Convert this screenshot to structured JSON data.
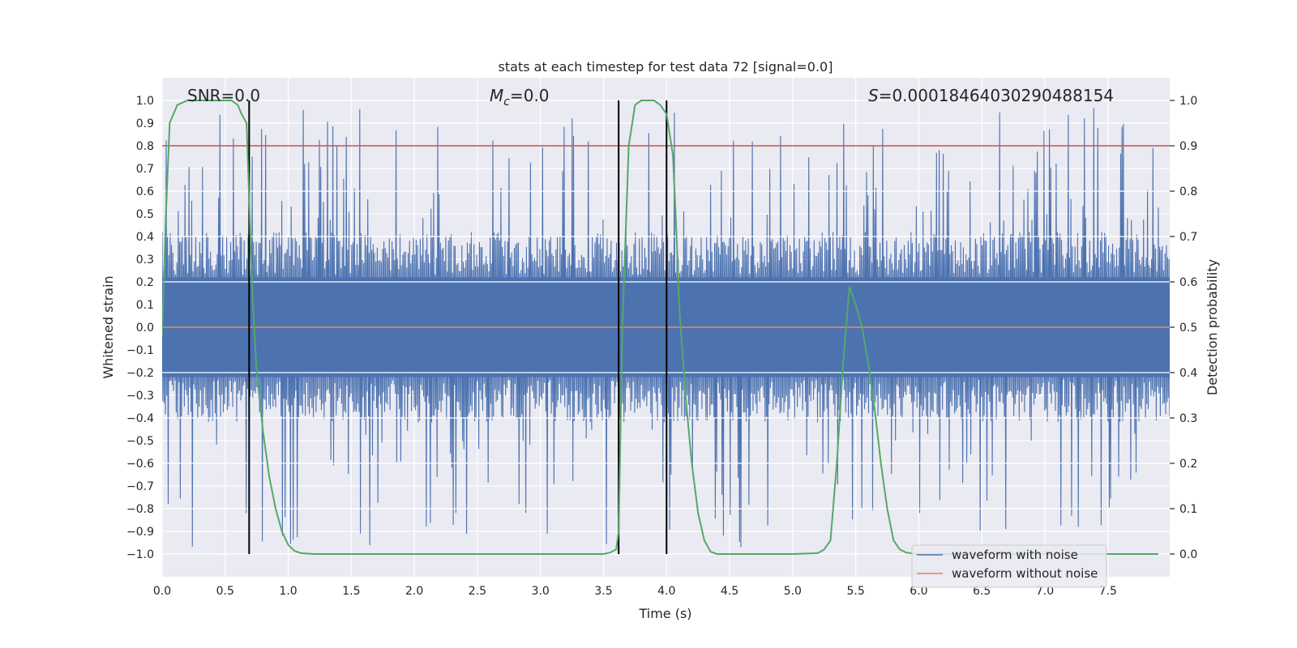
{
  "chart_data": {
    "type": "line",
    "title": "stats at each timestep for test data 72 [signal=0.0]",
    "xlabel": "Time (s)",
    "ylabel_left": "Whitened strain",
    "ylabel_right": "Detection probability",
    "xlim": [
      0.0,
      7.99
    ],
    "ylim_left": [
      -1.1,
      1.1
    ],
    "ylim_right": [
      -0.05,
      1.05
    ],
    "xticks": [
      "0.0",
      "0.5",
      "1.0",
      "1.5",
      "2.0",
      "2.5",
      "3.0",
      "3.5",
      "4.0",
      "4.5",
      "5.0",
      "5.5",
      "6.0",
      "6.5",
      "7.0",
      "7.5"
    ],
    "yticks_left": [
      "-1.0",
      "-0.9",
      "-0.8",
      "-0.7",
      "-0.6",
      "-0.5",
      "-0.4",
      "-0.3",
      "-0.2",
      "-0.1",
      "0.0",
      "0.1",
      "0.2",
      "0.3",
      "0.4",
      "0.5",
      "0.6",
      "0.7",
      "0.8",
      "0.9",
      "1.0"
    ],
    "yticks_right": [
      "0.0",
      "0.1",
      "0.2",
      "0.3",
      "0.4",
      "0.5",
      "0.6",
      "0.7",
      "0.8",
      "0.9",
      "1.0"
    ],
    "annotations": {
      "snr": "SNR=0.0",
      "mc_symbol": "M",
      "mc_sub": "c",
      "mc_value": "=0.0",
      "s_symbol": "S",
      "s_value": "=0.00018464030290488154"
    },
    "threshold_line": {
      "y": 0.9,
      "axis": "right",
      "color": "#c44e52"
    },
    "vertical_lines": {
      "x": [
        0.69,
        3.62,
        4.0
      ],
      "color": "#000000",
      "y_range": [
        -1.0,
        1.0
      ]
    },
    "legend": {
      "position": "lower right",
      "entries": [
        {
          "label": "waveform with noise",
          "color": "#4c72b0"
        },
        {
          "label": "waveform without noise",
          "color": "#dd8452"
        }
      ]
    },
    "series": [
      {
        "name": "waveform with noise",
        "color": "#4c72b0",
        "axis": "left",
        "kind": "noise",
        "typical_peak": 0.42,
        "max_abs": 0.97,
        "seed": 72
      },
      {
        "name": "waveform without noise",
        "color": "#dd8452",
        "axis": "left",
        "x": [
          0.0,
          7.99
        ],
        "y": [
          0.0,
          0.0
        ]
      },
      {
        "name": "detection probability",
        "color": "#55a868",
        "axis": "right",
        "x": [
          0.0,
          0.03,
          0.06,
          0.12,
          0.2,
          0.3,
          0.4,
          0.5,
          0.55,
          0.6,
          0.63,
          0.67,
          0.7,
          0.72,
          0.75,
          0.8,
          0.85,
          0.9,
          0.95,
          1.0,
          1.05,
          1.1,
          1.2,
          1.5,
          2.0,
          2.5,
          3.0,
          3.5,
          3.55,
          3.6,
          3.62,
          3.65,
          3.7,
          3.75,
          3.8,
          3.9,
          3.95,
          4.0,
          4.05,
          4.08,
          4.1,
          4.15,
          4.2,
          4.25,
          4.3,
          4.35,
          4.4,
          5.0,
          5.2,
          5.25,
          5.3,
          5.35,
          5.4,
          5.45,
          5.5,
          5.55,
          5.6,
          5.65,
          5.7,
          5.75,
          5.8,
          5.85,
          5.9,
          6.0,
          7.9
        ],
        "y": [
          0.48,
          0.75,
          0.95,
          0.99,
          1.0,
          1.0,
          1.0,
          1.0,
          1.0,
          0.99,
          0.97,
          0.95,
          0.7,
          0.55,
          0.4,
          0.27,
          0.17,
          0.1,
          0.05,
          0.02,
          0.007,
          0.002,
          0.0,
          0.0,
          0.0,
          0.0,
          0.0,
          0.0,
          0.003,
          0.01,
          0.05,
          0.5,
          0.9,
          0.99,
          1.0,
          1.0,
          0.99,
          0.97,
          0.88,
          0.7,
          0.55,
          0.35,
          0.2,
          0.09,
          0.03,
          0.005,
          0.0,
          0.0,
          0.002,
          0.01,
          0.03,
          0.2,
          0.42,
          0.59,
          0.55,
          0.5,
          0.42,
          0.32,
          0.2,
          0.1,
          0.03,
          0.01,
          0.003,
          0.0,
          0.0
        ]
      }
    ]
  }
}
